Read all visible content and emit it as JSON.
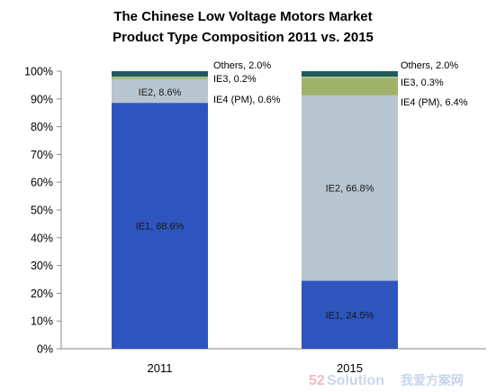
{
  "chart_data": {
    "type": "bar",
    "stacked": true,
    "title": "The Chinese Low Voltage Motors Market",
    "subtitle": "Product Type Composition 2011 vs. 2015",
    "categories": [
      "2011",
      "2015"
    ],
    "yticks": [
      "0%",
      "10%",
      "20%",
      "30%",
      "40%",
      "50%",
      "60%",
      "70%",
      "80%",
      "90%",
      "100%"
    ],
    "ylim": [
      0,
      100
    ],
    "series": [
      {
        "name": "IE1",
        "color": "#2e55bd",
        "values": [
          88.6,
          24.5
        ],
        "labels": [
          "IE1, 88.6%",
          "IE1, 24.5%"
        ]
      },
      {
        "name": "IE2",
        "color": "#b6c5cf",
        "values": [
          8.6,
          66.8
        ],
        "labels": [
          "IE2, 8.6%",
          "IE2, 66.8%"
        ]
      },
      {
        "name": "IE4 (PM)",
        "color": "#a0b16a",
        "values": [
          0.6,
          6.4
        ],
        "labels": [
          "IE4 (PM), 0.6%",
          "IE4 (PM), 6.4%"
        ]
      },
      {
        "name": "IE3",
        "color": "#cfd9a9",
        "values": [
          0.2,
          0.3
        ],
        "labels": [
          "IE3, 0.2%",
          "IE3, 0.3%"
        ]
      },
      {
        "name": "Others",
        "color": "#1e5c59",
        "values": [
          2.0,
          2.0
        ],
        "labels": [
          "Others, 2.0%",
          "Others, 2.0%"
        ]
      }
    ]
  },
  "watermark": {
    "num": "52",
    "word": "Solution",
    "cjk": "我爱方案网"
  }
}
